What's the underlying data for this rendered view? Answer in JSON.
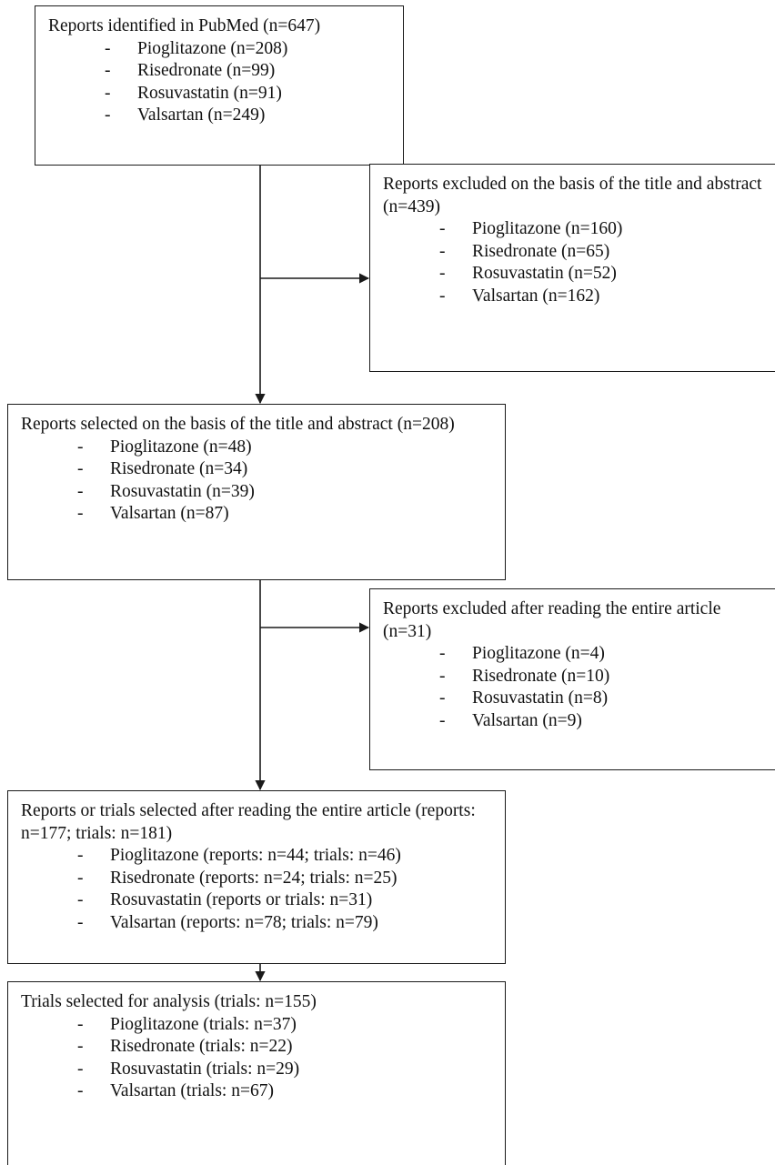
{
  "boxes": [
    {
      "title": "Reports identified in PubMed (n=647)",
      "items": [
        "Pioglitazone (n=208)",
        "Risedronate (n=99)",
        "Rosuvastatin (n=91)",
        "Valsartan (n=249)"
      ]
    },
    {
      "title": "Reports excluded on the basis of the title and abstract (n=439)",
      "items": [
        "Pioglitazone (n=160)",
        "Risedronate (n=65)",
        "Rosuvastatin (n=52)",
        "Valsartan (n=162)"
      ]
    },
    {
      "title": "Reports selected on the basis of the title and abstract (n=208)",
      "items": [
        "Pioglitazone (n=48)",
        "Risedronate (n=34)",
        "Rosuvastatin (n=39)",
        "Valsartan (n=87)"
      ]
    },
    {
      "title": "Reports excluded after reading the entire article (n=31)",
      "items": [
        "Pioglitazone (n=4)",
        "Risedronate (n=10)",
        "Rosuvastatin (n=8)",
        "Valsartan (n=9)"
      ]
    },
    {
      "title": "Reports or trials selected after reading the entire article (reports: n=177; trials: n=181)",
      "items": [
        "Pioglitazone (reports: n=44; trials: n=46)",
        "Risedronate (reports: n=24; trials: n=25)",
        "Rosuvastatin (reports or trials: n=31)",
        "Valsartan (reports: n=78; trials: n=79)"
      ]
    },
    {
      "title": "Trials selected for analysis (trials: n=155)",
      "items": [
        "Pioglitazone (trials: n=37)",
        "Risedronate (trials: n=22)",
        "Rosuvastatin (trials: n=29)",
        "Valsartan (trials: n=67)"
      ]
    }
  ]
}
